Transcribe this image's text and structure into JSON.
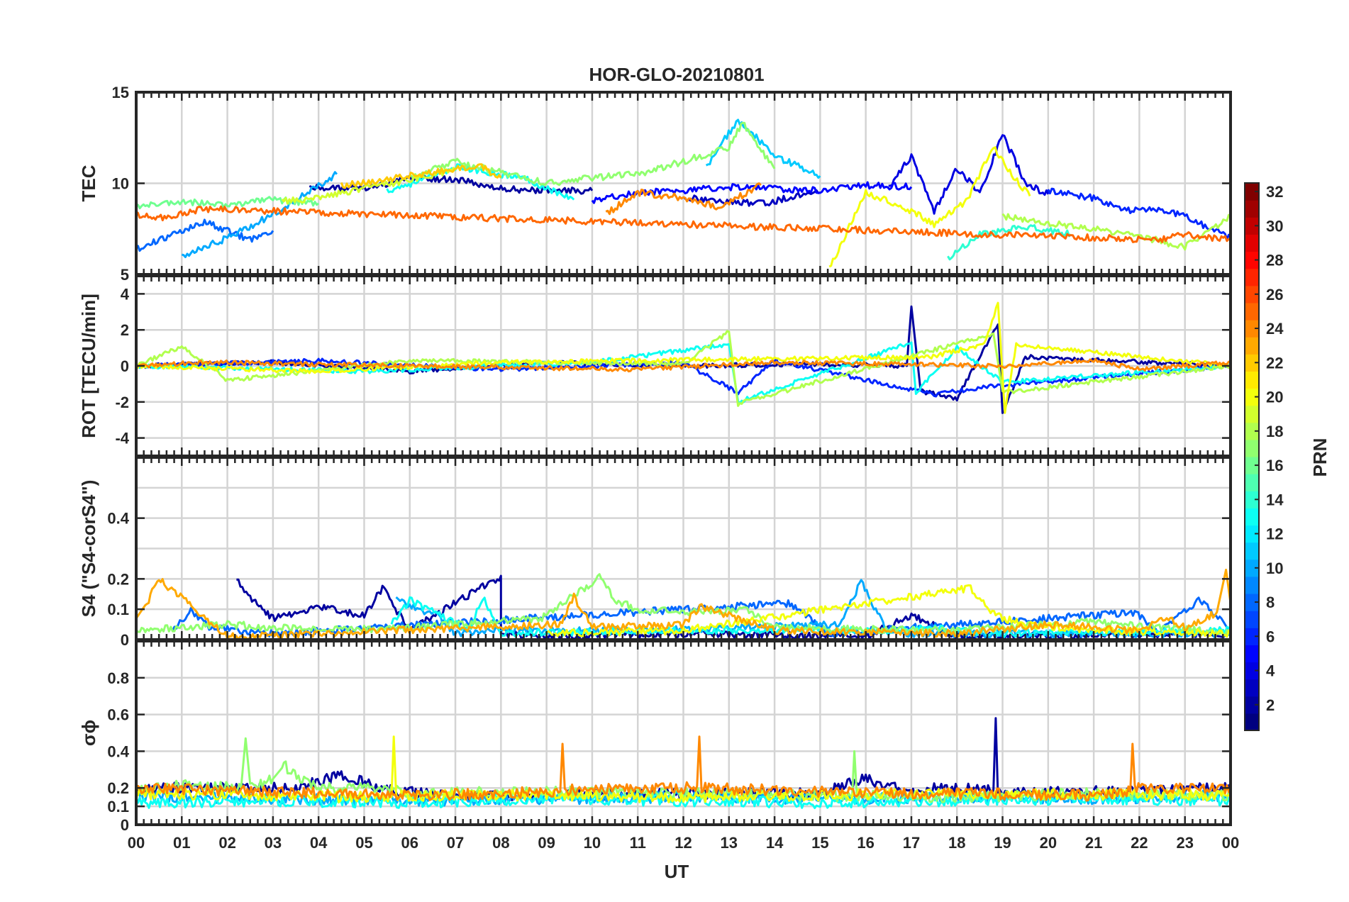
{
  "chart_data": {
    "type": "line",
    "title": "HOR-GLO-20210801",
    "xlabel": "UT",
    "x_ticks": [
      "00",
      "01",
      "02",
      "03",
      "04",
      "05",
      "06",
      "07",
      "08",
      "09",
      "10",
      "11",
      "12",
      "13",
      "14",
      "15",
      "16",
      "17",
      "18",
      "19",
      "20",
      "21",
      "22",
      "23",
      "00"
    ],
    "xlim": [
      0,
      24
    ],
    "grid": true,
    "colorbar": {
      "label": "PRN",
      "range": [
        1,
        32
      ],
      "ticks": [
        "2",
        "4",
        "6",
        "8",
        "10",
        "12",
        "14",
        "16",
        "18",
        "20",
        "22",
        "24",
        "26",
        "28",
        "30",
        "32"
      ],
      "colormap": "jet"
    },
    "panels": [
      {
        "ylabel": "TEC",
        "ylim": [
          5,
          15
        ],
        "y_ticks": [
          "5",
          "10",
          "15"
        ],
        "series": [
          {
            "prn": 2,
            "x": [
              3.8,
              5,
              6,
              7,
              8,
              9,
              10
            ],
            "values": [
              9.8,
              9.7,
              10.3,
              10.2,
              9.7,
              9.6,
              9.6
            ]
          },
          {
            "prn": 3,
            "x": [
              12,
              13,
              13.8,
              14.6,
              15
            ],
            "values": [
              9.2,
              9.0,
              8.9,
              9.4,
              9.5
            ]
          },
          {
            "prn": 4,
            "x": [
              16.5,
              17,
              17.5,
              18,
              18.5,
              19,
              19.5,
              20
            ],
            "values": [
              9.8,
              11.5,
              8.5,
              10.8,
              9.5,
              12.7,
              10,
              9.4
            ]
          },
          {
            "prn": 5,
            "x": [
              10,
              11,
              12,
              13,
              14,
              15,
              16,
              17
            ],
            "values": [
              9.0,
              9.5,
              9.6,
              9.8,
              9.7,
              9.6,
              9.9,
              9.8
            ]
          },
          {
            "prn": 6,
            "x": [
              20,
              21,
              21.8,
              22.3,
              23,
              24
            ],
            "values": [
              9.6,
              9.2,
              8.5,
              8.6,
              8.2,
              7.0
            ]
          },
          {
            "prn": 8,
            "x": [
              0,
              0.5,
              1,
              1.5,
              2,
              2.5,
              3
            ],
            "values": [
              6.4,
              6.9,
              7.4,
              7.9,
              7.4,
              6.9,
              7.4
            ]
          },
          {
            "prn": 10,
            "x": [
              1,
              2,
              3,
              4.4
            ],
            "values": [
              6.0,
              7.0,
              8.3,
              10.5
            ]
          },
          {
            "prn": 11,
            "x": [
              12.5,
              13.2,
              14,
              15
            ],
            "values": [
              10.9,
              13.5,
              11.5,
              10.4
            ]
          },
          {
            "prn": 13,
            "x": [
              5.5,
              6.3,
              7,
              8.5,
              9.6
            ],
            "values": [
              9.6,
              10.2,
              10.9,
              10.3,
              9.1
            ]
          },
          {
            "prn": 14,
            "x": [
              17.8,
              18.5,
              19.5,
              20.5
            ],
            "values": [
              5.9,
              7.2,
              7.6,
              7.2
            ]
          },
          {
            "prn": 16,
            "x": [
              0,
              1,
              2,
              3,
              4
            ],
            "values": [
              8.7,
              9.0,
              8.8,
              9.1,
              8.9
            ]
          },
          {
            "prn": 17,
            "x": [
              6,
              7,
              8,
              9,
              10,
              11,
              12,
              13,
              13.3,
              14
            ],
            "values": [
              10.3,
              11.2,
              10.6,
              10.0,
              10.3,
              10.5,
              11.2,
              12.0,
              13.3,
              10.8
            ]
          },
          {
            "prn": 18,
            "x": [
              19,
              20,
              21,
              22,
              23,
              24
            ],
            "values": [
              8.2,
              7.8,
              7.5,
              7.1,
              6.5,
              8.2
            ]
          },
          {
            "prn": 19,
            "x": [
              3.2,
              4,
              5,
              6,
              7
            ],
            "values": [
              9.0,
              9.2,
              9.7,
              10.2,
              10.7
            ]
          },
          {
            "prn": 20,
            "x": [
              15.2,
              16,
              17,
              17.5,
              18.2,
              18.8,
              19.2,
              19.6
            ],
            "values": [
              5.3,
              9.5,
              8.5,
              7.7,
              9.0,
              12.0,
              10.5,
              9.3
            ]
          },
          {
            "prn": 22,
            "x": [
              4.5,
              5.5,
              6.5,
              7.5,
              8
            ],
            "values": [
              9.9,
              10.2,
              10.6,
              11.0,
              10.3
            ]
          },
          {
            "prn": 24,
            "x": [
              10.3,
              11,
              12,
              12.8,
              13.7
            ],
            "values": [
              8.3,
              9.5,
              9.2,
              8.7,
              9.9
            ]
          },
          {
            "prn": 25,
            "x": [
              0,
              0.5,
              1.5,
              22.5,
              23,
              24
            ],
            "values": [
              8.3,
              8.1,
              8.6,
              6.9,
              7.2,
              6.9
            ]
          }
        ]
      },
      {
        "ylabel": "ROT [TECU/min]",
        "ylim": [
          -5,
          5
        ],
        "y_ticks": [
          "-4",
          "-2",
          "0",
          "2",
          "4"
        ],
        "series": [
          {
            "prn": 2,
            "x": [
              0,
              3,
              6,
              9,
              12,
              15,
              16.9,
              17,
              17.2,
              18,
              18.9,
              19,
              19.5,
              24
            ],
            "values": [
              0,
              0.2,
              -0.3,
              0.2,
              0,
              0.1,
              0,
              3.3,
              -1.4,
              -1.8,
              2.3,
              -2.7,
              0.5,
              0
            ]
          },
          {
            "prn": 6,
            "x": [
              0,
              4,
              8,
              12,
              13.2,
              14,
              17.5,
              18.5,
              24
            ],
            "values": [
              0,
              0.3,
              -0.2,
              0.2,
              -1.5,
              0.3,
              -1.6,
              -1.2,
              0
            ]
          },
          {
            "prn": 13,
            "x": [
              0,
              5,
              10,
              13,
              13.2,
              17,
              17.1,
              18,
              19,
              24
            ],
            "values": [
              0,
              -0.3,
              0.2,
              1.2,
              -2.0,
              1.3,
              -1.5,
              1.0,
              -0.9,
              0
            ]
          },
          {
            "prn": 18,
            "x": [
              0,
              1,
              2,
              6,
              12,
              13,
              13.2,
              18.8,
              19,
              24
            ],
            "values": [
              0,
              1.1,
              -0.8,
              0.3,
              0.1,
              1.9,
              -2.1,
              1.8,
              -1.5,
              0
            ]
          },
          {
            "prn": 20,
            "x": [
              0,
              4,
              8,
              17.4,
              18.6,
              18.9,
              19.05,
              19.3,
              24
            ],
            "values": [
              0,
              -0.3,
              0.2,
              0.5,
              1.2,
              3.5,
              -2.6,
              1.2,
              0
            ]
          },
          {
            "prn": 24,
            "x": [
              0,
              1.5,
              6,
              11,
              14,
              19,
              21,
              22,
              24
            ],
            "values": [
              0,
              0.2,
              0,
              -0.2,
              0.2,
              0,
              0.3,
              -0.2,
              0.2
            ]
          }
        ]
      },
      {
        "ylabel": "S4 (\"S4-corS4\")",
        "ylim": [
          0,
          0.6
        ],
        "y_ticks": [
          "0",
          "0.1",
          "0.2",
          "0.4"
        ],
        "series": [
          {
            "prn": 2,
            "x": [
              2.2,
              2.5,
              3,
              4,
              5,
              5.4,
              6,
              8,
              8,
              9,
              12,
              16,
              17,
              18,
              24
            ],
            "values": [
              0.2,
              0.14,
              0.07,
              0.11,
              0.08,
              0.17,
              0.03,
              0.21,
              0.02,
              0.01,
              0.02,
              0.01,
              0.08,
              0.01,
              0.02
            ]
          },
          {
            "prn": 8,
            "x": [
              0.8,
              1.2,
              1.6,
              3,
              14.3,
              14.8,
              15.2,
              21.9,
              22.4,
              23.3,
              23.8,
              24
            ],
            "values": [
              0.03,
              0.1,
              0.04,
              0.02,
              0.12,
              0.07,
              0.02,
              0.09,
              0.02,
              0.13,
              0.07,
              0.02
            ]
          },
          {
            "prn": 10,
            "x": [
              5.7,
              6,
              6.6,
              7,
              8,
              11,
              15.4,
              15.9,
              16.5,
              24
            ],
            "values": [
              0.14,
              0.11,
              0.08,
              0.02,
              0.03,
              0.03,
              0.05,
              0.19,
              0.02,
              0.02
            ]
          },
          {
            "prn": 13,
            "x": [
              5.6,
              6,
              7.3,
              7.6,
              8,
              11,
              16.8,
              17.2,
              19,
              24
            ],
            "values": [
              0.05,
              0.13,
              0.03,
              0.14,
              0.02,
              0.03,
              0.03,
              0.04,
              0.02,
              0.03
            ]
          },
          {
            "prn": 17,
            "x": [
              0,
              2,
              4,
              6,
              8.9,
              10.2,
              10.5,
              11,
              12,
              13.4,
              14,
              18,
              21,
              24
            ],
            "values": [
              0.03,
              0.05,
              0.03,
              0.04,
              0.07,
              0.21,
              0.13,
              0.1,
              0.09,
              0.1,
              0.04,
              0.03,
              0.06,
              0.02
            ]
          },
          {
            "prn": 20,
            "x": [
              9,
              12,
              18.3,
              18.7,
              19,
              19.5,
              21,
              24
            ],
            "values": [
              0.02,
              0.03,
              0.17,
              0.1,
              0.07,
              0.05,
              0.03,
              0.02
            ]
          },
          {
            "prn": 23,
            "x": [
              0,
              0.2,
              0.5,
              2,
              9.3,
              9.6,
              10,
              12,
              12.4,
              14,
              18,
              20,
              22,
              22.6,
              23,
              23.7,
              23.9,
              24
            ],
            "values": [
              0.07,
              0.11,
              0.2,
              0.01,
              0.05,
              0.14,
              0.04,
              0.05,
              0.11,
              0.03,
              0.02,
              0.05,
              0.03,
              0.07,
              0.04,
              0.09,
              0.23,
              0.12
            ]
          }
        ]
      },
      {
        "ylabel": "σϕ",
        "ylim": [
          0,
          1
        ],
        "y_ticks": [
          "0",
          "0.1",
          "0.2",
          "0.4",
          "0.6",
          "0.8"
        ],
        "series": [
          {
            "prn": 2,
            "x": [
              0,
              2,
              3.5,
              4.5,
              5.5,
              7,
              9,
              12,
              15,
              16,
              17,
              17.5,
              18.8,
              18.85,
              18.9,
              24
            ],
            "values": [
              0.2,
              0.2,
              0.2,
              0.27,
              0.19,
              0.15,
              0.16,
              0.17,
              0.17,
              0.25,
              0.17,
              0.2,
              0.19,
              0.58,
              0.17,
              0.2
            ]
          },
          {
            "prn": 10,
            "x": [
              0,
              3,
              6,
              9,
              12,
              15,
              18,
              21,
              24
            ],
            "values": [
              0.15,
              0.14,
              0.13,
              0.14,
              0.15,
              0.14,
              0.15,
              0.14,
              0.16
            ]
          },
          {
            "prn": 13,
            "x": [
              0,
              3,
              6,
              9,
              12,
              15,
              18,
              21,
              24
            ],
            "values": [
              0.12,
              0.13,
              0.12,
              0.14,
              0.13,
              0.12,
              0.13,
              0.14,
              0.13
            ]
          },
          {
            "prn": 17,
            "x": [
              0,
              1,
              2.3,
              2.4,
              2.5,
              3,
              3.2,
              4,
              5,
              6,
              9,
              12,
              15,
              15.7,
              15.75,
              15.8,
              18,
              21,
              24
            ],
            "values": [
              0.18,
              0.22,
              0.2,
              0.47,
              0.2,
              0.25,
              0.33,
              0.19,
              0.22,
              0.17,
              0.18,
              0.17,
              0.16,
              0.15,
              0.4,
              0.16,
              0.15,
              0.17,
              0.16
            ]
          },
          {
            "prn": 20,
            "x": [
              0,
              5,
              5.6,
              5.65,
              5.7,
              9,
              12,
              18,
              24
            ],
            "values": [
              0.17,
              0.15,
              0.15,
              0.48,
              0.16,
              0.16,
              0.15,
              0.17,
              0.16
            ]
          },
          {
            "prn": 24,
            "x": [
              0,
              3,
              6,
              9.3,
              9.35,
              9.4,
              12,
              12.3,
              12.35,
              12.4,
              15,
              21,
              21.8,
              21.85,
              21.9,
              24
            ],
            "values": [
              0.2,
              0.18,
              0.16,
              0.18,
              0.44,
              0.19,
              0.2,
              0.21,
              0.48,
              0.2,
              0.18,
              0.16,
              0.18,
              0.44,
              0.2,
              0.2
            ]
          }
        ]
      }
    ]
  }
}
